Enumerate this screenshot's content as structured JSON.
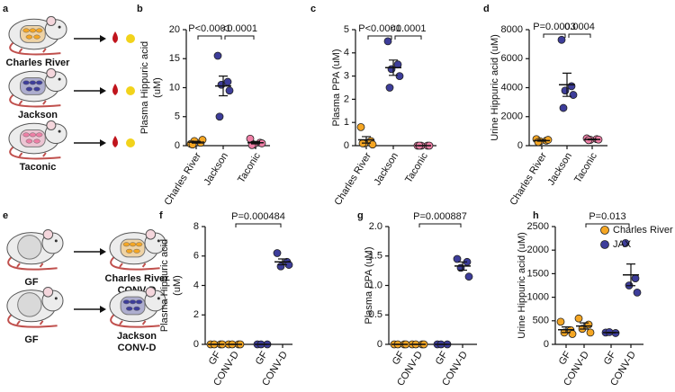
{
  "diagrams": [
    {
      "panel": "a",
      "labels": [
        {
          "text": "Charles River",
          "color": "#f5a623"
        },
        {
          "text": "Jackson",
          "color": "#3d3d9a"
        },
        {
          "text": "Taconic",
          "color": "#ef7fa6"
        }
      ]
    },
    {
      "panel": "e",
      "rows": [
        {
          "left": "GF",
          "right": [
            "Charles River",
            "CONV-D"
          ],
          "color": "#f5a623"
        },
        {
          "left": "GF",
          "right": [
            "Jackson",
            "CONV-D"
          ],
          "color": "#3d3d9a"
        }
      ]
    }
  ],
  "chart_data": [
    {
      "panel": "b",
      "type": "dot",
      "ylabel": [
        "Plasma Hippuric acid",
        "(uM)"
      ],
      "ylim": [
        0,
        20
      ],
      "yticks": [
        0,
        5,
        10,
        15,
        20
      ],
      "groups": [
        {
          "label": "Charles River",
          "color": "#f5a623",
          "values": [
            0.3,
            0.5,
            0.8,
            1.0,
            0.2
          ],
          "mean": 0.6,
          "sem": 0.15
        },
        {
          "label": "Jackson",
          "color": "#3d3d9a",
          "values": [
            15.5,
            11,
            10.5,
            9.5,
            5
          ],
          "mean": 10.3,
          "sem": 1.7
        },
        {
          "label": "Taconic",
          "color": "#ef7fa6",
          "values": [
            1.2,
            0.5,
            0.2,
            0.4,
            0.1
          ],
          "mean": 0.5,
          "sem": 0.2
        }
      ],
      "comparisons": [
        "P<0.0001",
        "<0.0001"
      ]
    },
    {
      "panel": "c",
      "type": "dot",
      "ylabel": [
        "Plasma PPA (uM)"
      ],
      "ylim": [
        0,
        5
      ],
      "yticks": [
        0,
        1,
        2,
        3,
        4,
        5
      ],
      "groups": [
        {
          "label": "Charles River",
          "color": "#f5a623",
          "values": [
            0.8,
            0.2,
            0.1,
            0.05,
            0.1
          ],
          "mean": 0.25,
          "sem": 0.14
        },
        {
          "label": "Jackson",
          "color": "#3d3d9a",
          "values": [
            4.5,
            3.5,
            3.3,
            3.0,
            2.5
          ],
          "mean": 3.36,
          "sem": 0.33
        },
        {
          "label": "Taconic",
          "color": "#ef7fa6",
          "values": [
            0,
            0,
            0,
            0,
            0
          ],
          "mean": 0,
          "sem": 0
        }
      ],
      "comparisons": [
        "P<0.0001",
        "<0.0001"
      ]
    },
    {
      "panel": "d",
      "type": "dot",
      "ylabel": [
        "Urine Hippuric acid (uM)"
      ],
      "ylim": [
        0,
        8000
      ],
      "yticks": [
        0,
        2000,
        4000,
        6000,
        8000
      ],
      "groups": [
        {
          "label": "Charles River",
          "color": "#f5a623",
          "values": [
            450,
            350,
            300,
            400,
            250
          ],
          "mean": 350,
          "sem": 40
        },
        {
          "label": "Jackson",
          "color": "#3d3d9a",
          "values": [
            7300,
            4100,
            3800,
            3500,
            2600
          ],
          "mean": 4200,
          "sem": 800
        },
        {
          "label": "Taconic",
          "color": "#ef7fa6",
          "values": [
            500,
            450,
            400,
            420,
            380
          ],
          "mean": 430,
          "sem": 30
        }
      ],
      "comparisons": [
        "P=0.0003",
        "0.0004"
      ]
    },
    {
      "panel": "f",
      "type": "dot",
      "ylabel": [
        "Plasma Hippuric acid",
        "(uM)"
      ],
      "ylim": [
        0,
        8
      ],
      "yticks": [
        0,
        2,
        4,
        6,
        8
      ],
      "groups": [
        {
          "label": "GF",
          "color": "#f5a623",
          "values": [
            0,
            0,
            0,
            0
          ],
          "mean": 0,
          "sem": 0
        },
        {
          "label": "CONV-D",
          "color": "#f5a623",
          "values": [
            0,
            0,
            0,
            0
          ],
          "mean": 0,
          "sem": 0
        },
        {
          "label": "GF",
          "color": "#3d3d9a",
          "values": [
            0,
            0,
            0
          ],
          "mean": 0,
          "sem": 0
        },
        {
          "label": "CONV-D",
          "color": "#3d3d9a",
          "values": [
            6.2,
            5.6,
            5.3,
            5.4
          ],
          "mean": 5.6,
          "sem": 0.2
        }
      ],
      "comparisons": [
        "P=0.000484"
      ]
    },
    {
      "panel": "g",
      "type": "dot",
      "ylabel": [
        "Plasma PPA (uM)"
      ],
      "ylim": [
        0,
        2
      ],
      "yticks": [
        0,
        0.5,
        {
          "value": 1,
          "label": "1.0"
        },
        1.5,
        {
          "value": 2,
          "label": "2.0"
        }
      ],
      "groups": [
        {
          "label": "GF",
          "color": "#f5a623",
          "values": [
            0,
            0,
            0,
            0
          ],
          "mean": 0,
          "sem": 0
        },
        {
          "label": "CONV-D",
          "color": "#f5a623",
          "values": [
            0,
            0,
            0,
            0
          ],
          "mean": 0,
          "sem": 0
        },
        {
          "label": "GF",
          "color": "#3d3d9a",
          "values": [
            0,
            0,
            0
          ],
          "mean": 0,
          "sem": 0
        },
        {
          "label": "CONV-D",
          "color": "#3d3d9a",
          "values": [
            1.45,
            1.4,
            1.3,
            1.15
          ],
          "mean": 1.33,
          "sem": 0.07
        }
      ],
      "comparisons": [
        "P=0.000887"
      ]
    },
    {
      "panel": "h",
      "type": "dot",
      "ylabel": [
        "Urine Hippuric acid (uM)"
      ],
      "ylim": [
        0,
        2500
      ],
      "yticks": [
        0,
        500,
        1000,
        1500,
        2000,
        2500
      ],
      "groups": [
        {
          "label": "GF",
          "color": "#f5a623",
          "values": [
            480,
            300,
            250,
            220
          ],
          "mean": 310,
          "sem": 60
        },
        {
          "label": "CONV-D",
          "color": "#f5a623",
          "values": [
            550,
            420,
            330,
            250
          ],
          "mean": 390,
          "sem": 65
        },
        {
          "label": "GF",
          "color": "#3d3d9a",
          "values": [
            250,
            240,
            260
          ],
          "mean": 250,
          "sem": 6
        },
        {
          "label": "CONV-D",
          "color": "#3d3d9a",
          "values": [
            2150,
            1400,
            1250,
            1100
          ],
          "mean": 1475,
          "sem": 230
        }
      ],
      "comparisons": [
        "P=0.013"
      ],
      "legend": [
        {
          "name": "Charles River",
          "color": "#f5a623"
        },
        {
          "name": "JAX",
          "color": "#3d3d9a"
        }
      ]
    }
  ]
}
